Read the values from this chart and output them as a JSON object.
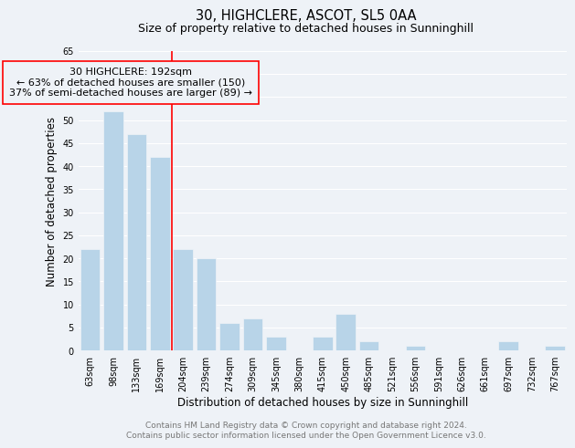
{
  "title": "30, HIGHCLERE, ASCOT, SL5 0AA",
  "subtitle": "Size of property relative to detached houses in Sunninghill",
  "xlabel": "Distribution of detached houses by size in Sunninghill",
  "ylabel": "Number of detached properties",
  "categories": [
    "63sqm",
    "98sqm",
    "133sqm",
    "169sqm",
    "204sqm",
    "239sqm",
    "274sqm",
    "309sqm",
    "345sqm",
    "380sqm",
    "415sqm",
    "450sqm",
    "485sqm",
    "521sqm",
    "556sqm",
    "591sqm",
    "626sqm",
    "661sqm",
    "697sqm",
    "732sqm",
    "767sqm"
  ],
  "values": [
    22,
    52,
    47,
    42,
    22,
    20,
    6,
    7,
    3,
    0,
    3,
    8,
    2,
    0,
    1,
    0,
    0,
    0,
    2,
    0,
    1
  ],
  "bar_color": "#b8d4e8",
  "redline_x": 3.5,
  "ylim": [
    0,
    65
  ],
  "yticks": [
    0,
    5,
    10,
    15,
    20,
    25,
    30,
    35,
    40,
    45,
    50,
    55,
    60,
    65
  ],
  "annotation_line1": "30 HIGHCLERE: 192sqm",
  "annotation_line2": "← 63% of detached houses are smaller (150)",
  "annotation_line3": "37% of semi-detached houses are larger (89) →",
  "footer_line1": "Contains HM Land Registry data © Crown copyright and database right 2024.",
  "footer_line2": "Contains public sector information licensed under the Open Government Licence v3.0.",
  "background_color": "#eef2f7",
  "grid_color": "#ffffff",
  "title_fontsize": 10.5,
  "subtitle_fontsize": 9,
  "axis_label_fontsize": 8.5,
  "tick_fontsize": 7,
  "annotation_fontsize": 8,
  "footer_fontsize": 6.5
}
